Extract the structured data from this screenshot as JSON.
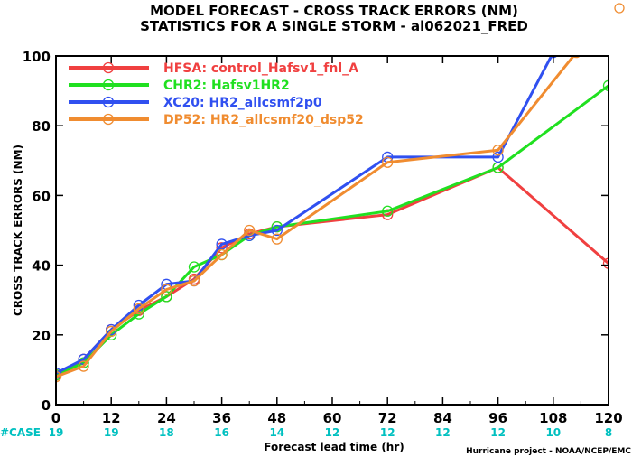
{
  "chart_data": {
    "type": "line",
    "title": "MODEL FORECAST - CROSS TRACK ERRORS (NM)",
    "subtitle": "STATISTICS FOR A SINGLE STORM - al062021_FRED",
    "xlabel": "Forecast lead time (hr)",
    "ylabel": "CROSS TRACK ERRORS (NM)",
    "xlim": [
      0,
      120
    ],
    "ylim": [
      0,
      100
    ],
    "xticks": [
      0,
      12,
      24,
      36,
      48,
      60,
      72,
      84,
      96,
      108,
      120
    ],
    "yticks": [
      0,
      20,
      40,
      60,
      80,
      100
    ],
    "grid": false,
    "legend_position": "top-left",
    "case_label": "#CASE",
    "case_x": [
      0,
      12,
      24,
      36,
      48,
      60,
      72,
      84,
      96,
      108,
      120
    ],
    "case_counts": [
      "19",
      "19",
      "18",
      "16",
      "14",
      "12",
      "12",
      "12",
      "12",
      "10",
      "8"
    ],
    "case_color": "#00c0c0",
    "credit": "Hurricane project - NOAA/NCEP/EMC",
    "series": [
      {
        "name": "HFSA: control_Hafsv1_fnl_A",
        "color": "#f04040",
        "points": [
          [
            0,
            8.5
          ],
          [
            6,
            13
          ],
          [
            12,
            21.5
          ],
          [
            18,
            27
          ],
          [
            24,
            31
          ],
          [
            30,
            36
          ],
          [
            36,
            45
          ],
          [
            42,
            49
          ],
          [
            48,
            51
          ],
          [
            72,
            54.5
          ],
          [
            96,
            68
          ],
          [
            120,
            40.5
          ]
        ]
      },
      {
        "name": "CHR2: Hafsv1HR2",
        "color": "#20e020",
        "points": [
          [
            0,
            8.5
          ],
          [
            6,
            12
          ],
          [
            12,
            20
          ],
          [
            18,
            26
          ],
          [
            24,
            31
          ],
          [
            30,
            39.5
          ],
          [
            36,
            43
          ],
          [
            42,
            48.5
          ],
          [
            48,
            51
          ],
          [
            72,
            55.5
          ],
          [
            96,
            68
          ],
          [
            120,
            91.5
          ]
        ]
      },
      {
        "name": "XC20: HR2_allcsmf2p0",
        "color": "#3050f0",
        "points": [
          [
            0,
            9
          ],
          [
            6,
            13
          ],
          [
            12,
            21.5
          ],
          [
            18,
            28.5
          ],
          [
            24,
            34.5
          ],
          [
            30,
            35.5
          ],
          [
            36,
            46
          ],
          [
            42,
            48.5
          ],
          [
            48,
            50
          ],
          [
            72,
            71
          ],
          [
            96,
            71
          ],
          [
            108,
            101
          ]
        ]
      },
      {
        "name": "DP52: HR2_allcsmf20_dsp52",
        "color": "#f08c30",
        "points": [
          [
            0,
            8
          ],
          [
            6,
            11
          ],
          [
            12,
            21
          ],
          [
            18,
            27.5
          ],
          [
            24,
            33
          ],
          [
            30,
            35.5
          ],
          [
            36,
            43
          ],
          [
            42,
            50
          ],
          [
            48,
            47.5
          ],
          [
            72,
            69.5
          ],
          [
            96,
            73
          ],
          [
            113,
            101
          ]
        ]
      }
    ]
  }
}
